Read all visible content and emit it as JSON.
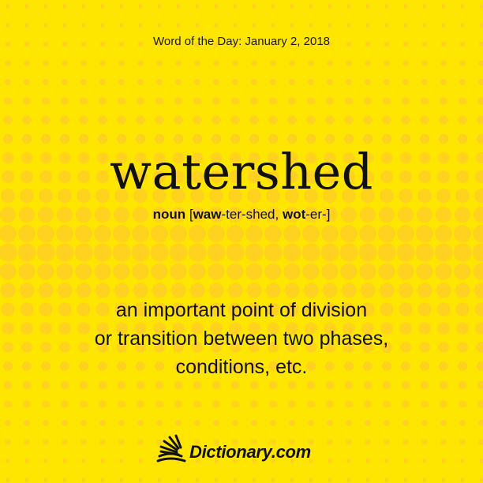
{
  "header": {
    "date_line": "Word of the Day: January 2, 2018"
  },
  "word": "watershed",
  "pronunciation": {
    "pos": "noun",
    "open": " [",
    "s1_bold": "waw",
    "s1_rest": "-ter-shed, ",
    "s2_bold": "wot",
    "s2_rest": "-er-]"
  },
  "definition": [
    "an important point of division",
    "or transition between two phases,",
    "conditions, etc."
  ],
  "brand": {
    "name": "Dictionary.com",
    "icon": "sunrise-book-icon"
  },
  "colors": {
    "background": "#ffe600",
    "dots": "#ffd21f",
    "text": "#111111"
  }
}
